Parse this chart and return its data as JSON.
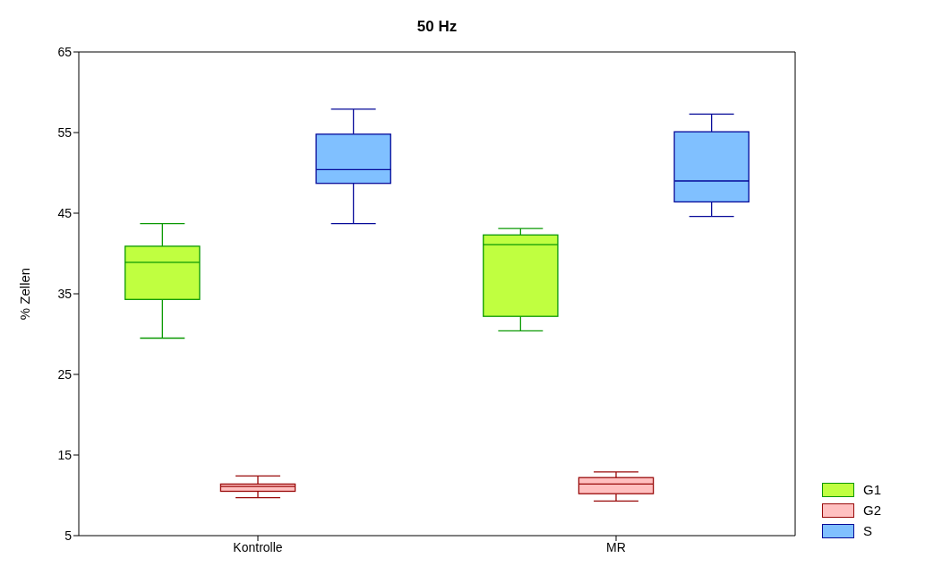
{
  "chart_data": {
    "type": "box",
    "title": "50 Hz",
    "ylabel": "% Zellen",
    "categories": [
      "Kontrolle",
      "MR"
    ],
    "ylim": [
      5,
      65
    ],
    "yticks": [
      5,
      15,
      25,
      35,
      45,
      55,
      65
    ],
    "legend": "bottom right",
    "series": [
      {
        "name": "G1",
        "color": "#c0ff40",
        "boxes": [
          {
            "low": 29.5,
            "q1": 34.3,
            "median": 38.9,
            "q3": 40.9,
            "high": 43.7
          },
          {
            "low": 30.4,
            "q1": 32.2,
            "median": 41.1,
            "q3": 42.3,
            "high": 43.1
          }
        ]
      },
      {
        "name": "G2",
        "color": "#ffc0c0",
        "boxes": [
          {
            "low": 9.7,
            "q1": 10.5,
            "median": 11.1,
            "q3": 11.4,
            "high": 12.4
          },
          {
            "low": 9.3,
            "q1": 10.2,
            "median": 11.4,
            "q3": 12.2,
            "high": 12.9
          }
        ]
      },
      {
        "name": "S",
        "color": "#80c0ff",
        "boxes": [
          {
            "low": 43.7,
            "q1": 48.7,
            "median": 50.4,
            "q3": 54.8,
            "high": 57.9
          },
          {
            "low": 44.6,
            "q1": 46.4,
            "median": 49.0,
            "q3": 55.1,
            "high": 57.3
          }
        ]
      }
    ]
  }
}
